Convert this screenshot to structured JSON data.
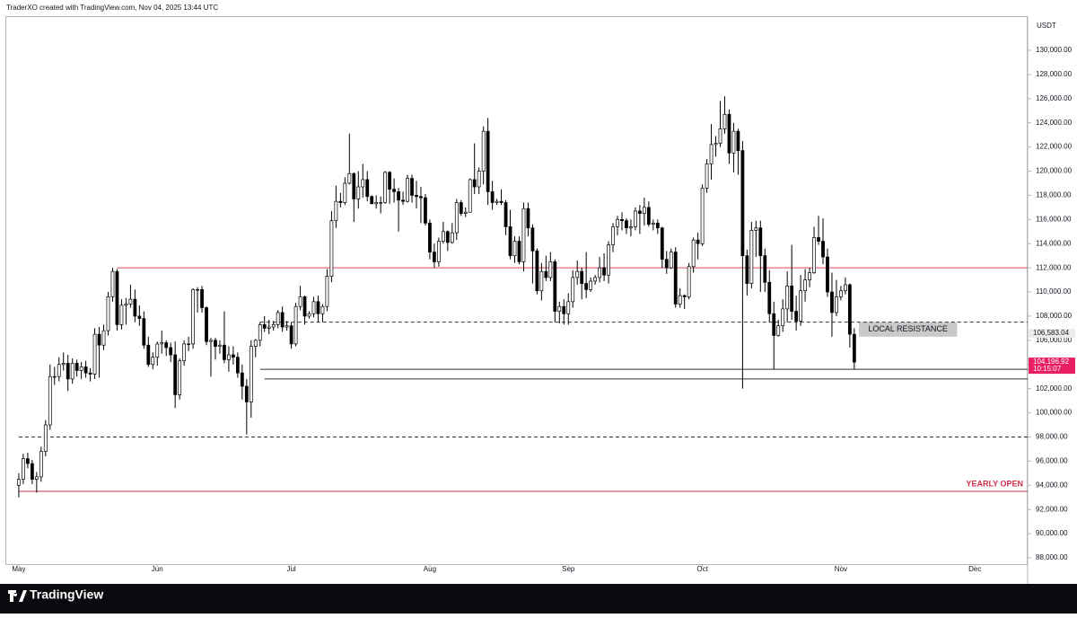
{
  "header": "TraderXO created with TradingView.com, Nov 04, 2025 13:44 UTC",
  "brand": "TradingView",
  "chart_data": {
    "type": "candlestick",
    "currency": "USDT",
    "xlim": [
      -2.8,
      225.8
    ],
    "xticks": [
      {
        "value": 0,
        "label": "May"
      },
      {
        "value": 31,
        "label": "Jun"
      },
      {
        "value": 61,
        "label": "Jul"
      },
      {
        "value": 92,
        "label": "Aug"
      },
      {
        "value": 123,
        "label": "Sep"
      },
      {
        "value": 153,
        "label": "Oct"
      },
      {
        "value": 184,
        "label": "Nov"
      },
      {
        "value": 214,
        "label": "Dec"
      }
    ],
    "ylim": [
      87480,
      132825
    ],
    "yticks": [
      {
        "value": 88000,
        "label": "88,000.00"
      },
      {
        "value": 90000,
        "label": "90,000.00"
      },
      {
        "value": 92000,
        "label": "92,000.00"
      },
      {
        "value": 94000,
        "label": "94,000.00"
      },
      {
        "value": 96000,
        "label": "96,000.00"
      },
      {
        "value": 98000,
        "label": "98,000.00"
      },
      {
        "value": 100000,
        "label": "100,000.00"
      },
      {
        "value": 102000,
        "label": "102,000.00"
      },
      {
        "value": 104000,
        "label": "104,000.00"
      },
      {
        "value": 106000,
        "label": "106,000.00"
      },
      {
        "value": 108000,
        "label": "108,000.00"
      },
      {
        "value": 110000,
        "label": "110,000.00"
      },
      {
        "value": 112000,
        "label": "112,000.00"
      },
      {
        "value": 114000,
        "label": "114,000.00"
      },
      {
        "value": 116000,
        "label": "116,000.00"
      },
      {
        "value": 118000,
        "label": "118,000.00"
      },
      {
        "value": 120000,
        "label": "120,000.00"
      },
      {
        "value": 122000,
        "label": "122,000.00"
      },
      {
        "value": 124000,
        "label": "124,000.00"
      },
      {
        "value": 126000,
        "label": "126,000.00"
      },
      {
        "value": 128000,
        "label": "128,000.00"
      },
      {
        "value": 130000,
        "label": "130,000.00"
      }
    ],
    "up_color": "#ffffff",
    "down_color": "#000000",
    "wick_color": "#000000",
    "candles": [
      [
        94000,
        95000,
        93000,
        94500
      ],
      [
        94500,
        96600,
        94100,
        96200
      ],
      [
        96200,
        96700,
        95400,
        95800
      ],
      [
        95800,
        96100,
        94100,
        94500
      ],
      [
        94500,
        95100,
        93400,
        94700
      ],
      [
        94700,
        97200,
        94300,
        96800
      ],
      [
        96800,
        99400,
        96400,
        99000
      ],
      [
        99000,
        104000,
        98600,
        103000
      ],
      [
        103000,
        103800,
        102300,
        103000
      ],
      [
        103000,
        104600,
        102600,
        104000
      ],
      [
        104000,
        105000,
        103500,
        104100
      ],
      [
        104100,
        104800,
        101800,
        102800
      ],
      [
        102800,
        104500,
        102400,
        104100
      ],
      [
        104100,
        104400,
        103000,
        103500
      ],
      [
        103500,
        104200,
        102800,
        103800
      ],
      [
        103800,
        104300,
        102900,
        103300
      ],
      [
        103300,
        103700,
        102600,
        103200
      ],
      [
        103200,
        107000,
        102800,
        106500
      ],
      [
        106500,
        107100,
        102900,
        105600
      ],
      [
        105600,
        107300,
        105200,
        106800
      ],
      [
        106800,
        110000,
        106400,
        109600
      ],
      [
        109600,
        112000,
        109200,
        111700
      ],
      [
        111700,
        111900,
        106800,
        107300
      ],
      [
        107300,
        109400,
        106900,
        108900
      ],
      [
        108900,
        109500,
        107300,
        109000
      ],
      [
        109000,
        110600,
        108700,
        109400
      ],
      [
        109400,
        110200,
        107500,
        108000
      ],
      [
        108000,
        108900,
        107200,
        107800
      ],
      [
        107800,
        108400,
        105300,
        105600
      ],
      [
        105600,
        106300,
        103800,
        104000
      ],
      [
        104000,
        105000,
        103600,
        104600
      ],
      [
        104600,
        105900,
        103900,
        105700
      ],
      [
        105700,
        106800,
        104900,
        105800
      ],
      [
        105800,
        106000,
        104700,
        105400
      ],
      [
        105400,
        105800,
        104200,
        104800
      ],
      [
        104800,
        105900,
        100400,
        101500
      ],
      [
        101500,
        104500,
        101100,
        104300
      ],
      [
        104300,
        106000,
        103900,
        105700
      ],
      [
        105700,
        106300,
        105100,
        105700
      ],
      [
        105700,
        110300,
        105300,
        110200
      ],
      [
        110200,
        110400,
        108300,
        110200
      ],
      [
        110200,
        110500,
        108300,
        108700
      ],
      [
        108700,
        108800,
        105600,
        105900
      ],
      [
        105900,
        106200,
        103000,
        106000
      ],
      [
        106000,
        106200,
        104400,
        105500
      ],
      [
        105500,
        106000,
        104900,
        105600
      ],
      [
        105600,
        108400,
        104100,
        104400
      ],
      [
        104400,
        105500,
        103400,
        104800
      ],
      [
        104800,
        105500,
        104000,
        104600
      ],
      [
        104600,
        105000,
        102900,
        103300
      ],
      [
        103300,
        104000,
        101100,
        102200
      ],
      [
        102200,
        102800,
        98200,
        100900
      ],
      [
        100900,
        106000,
        99600,
        105500
      ],
      [
        105500,
        106100,
        104600,
        106000
      ],
      [
        106000,
        107500,
        105500,
        107300
      ],
      [
        107300,
        108000,
        106700,
        107000
      ],
      [
        107000,
        107700,
        106500,
        107100
      ],
      [
        107100,
        107600,
        106800,
        107300
      ],
      [
        107300,
        108500,
        107000,
        108300
      ],
      [
        108300,
        108800,
        106700,
        107100
      ],
      [
        107100,
        107600,
        106800,
        107200
      ],
      [
        107200,
        107500,
        105300,
        105700
      ],
      [
        105700,
        109100,
        105500,
        108800
      ],
      [
        108800,
        110500,
        108500,
        109600
      ],
      [
        109600,
        109700,
        107300,
        108000
      ],
      [
        108000,
        108400,
        107800,
        108200
      ],
      [
        108200,
        109600,
        107900,
        109200
      ],
      [
        109200,
        109700,
        107500,
        108200
      ],
      [
        108200,
        109000,
        107500,
        108800
      ],
      [
        108800,
        111900,
        108400,
        111300
      ],
      [
        111300,
        116700,
        110800,
        115900
      ],
      [
        115900,
        118800,
        115300,
        117500
      ],
      [
        117500,
        118200,
        117000,
        117400
      ],
      [
        117400,
        119500,
        117200,
        119000
      ],
      [
        119000,
        123100,
        118900,
        119800
      ],
      [
        119800,
        119900,
        115800,
        117700
      ],
      [
        117700,
        120000,
        116900,
        118700
      ],
      [
        118700,
        120600,
        117800,
        119300
      ],
      [
        119300,
        120000,
        117500,
        117900
      ],
      [
        117900,
        118000,
        117300,
        117300
      ],
      [
        117300,
        118000,
        116900,
        117400
      ],
      [
        117400,
        117900,
        116500,
        117400
      ],
      [
        117400,
        120000,
        117300,
        119900
      ],
      [
        119900,
        120000,
        117300,
        118500
      ],
      [
        118500,
        119400,
        117400,
        118300
      ],
      [
        118300,
        118600,
        115000,
        117600
      ],
      [
        117600,
        118300,
        117200,
        117500
      ],
      [
        117500,
        119700,
        117400,
        119400
      ],
      [
        119400,
        119700,
        117400,
        118000
      ],
      [
        118000,
        119200,
        116900,
        117900
      ],
      [
        117900,
        118700,
        115700,
        117800
      ],
      [
        117800,
        118100,
        115500,
        115700
      ],
      [
        115700,
        116000,
        112700,
        113300
      ],
      [
        113300,
        114000,
        112000,
        112500
      ],
      [
        112500,
        114500,
        112100,
        114200
      ],
      [
        114200,
        115800,
        114000,
        115000
      ],
      [
        115000,
        115100,
        113400,
        114100
      ],
      [
        114100,
        115700,
        114000,
        114900
      ],
      [
        114900,
        117700,
        114300,
        117400
      ],
      [
        117400,
        117600,
        116300,
        116500
      ],
      [
        116500,
        117000,
        116200,
        116600
      ],
      [
        116600,
        119400,
        116600,
        119300
      ],
      [
        119300,
        122300,
        118100,
        118700
      ],
      [
        118700,
        120300,
        118100,
        120000
      ],
      [
        120000,
        123700,
        118900,
        123300
      ],
      [
        123300,
        124400,
        117200,
        118300
      ],
      [
        118300,
        119200,
        116800,
        117400
      ],
      [
        117400,
        117700,
        117200,
        117500
      ],
      [
        117500,
        118500,
        117200,
        117400
      ],
      [
        117400,
        117600,
        114700,
        115400
      ],
      [
        115400,
        116800,
        112700,
        113000
      ],
      [
        113000,
        114600,
        112400,
        114200
      ],
      [
        114200,
        114600,
        112300,
        112500
      ],
      [
        112500,
        117400,
        111700,
        116900
      ],
      [
        116900,
        117400,
        114600,
        115300
      ],
      [
        115300,
        115600,
        110700,
        113400
      ],
      [
        113400,
        113600,
        109800,
        110100
      ],
      [
        110100,
        112400,
        109300,
        111700
      ],
      [
        111700,
        113000,
        110900,
        111200
      ],
      [
        111200,
        113300,
        110900,
        112500
      ],
      [
        112500,
        112700,
        107500,
        108400
      ],
      [
        108400,
        109200,
        107400,
        108800
      ],
      [
        108800,
        109400,
        107300,
        108200
      ],
      [
        108200,
        109900,
        107300,
        109200
      ],
      [
        109200,
        111800,
        108700,
        111200
      ],
      [
        111200,
        112600,
        110600,
        111700
      ],
      [
        111700,
        112000,
        109400,
        110700
      ],
      [
        110700,
        113300,
        109500,
        110200
      ],
      [
        110200,
        111200,
        110000,
        110900
      ],
      [
        110900,
        111400,
        110600,
        111200
      ],
      [
        111200,
        112900,
        110800,
        112000
      ],
      [
        112000,
        113200,
        110900,
        111400
      ],
      [
        111400,
        114200,
        110700,
        113900
      ],
      [
        113900,
        115700,
        113300,
        115400
      ],
      [
        115400,
        116300,
        114700,
        116000
      ],
      [
        116000,
        116600,
        115100,
        115900
      ],
      [
        115900,
        116100,
        114800,
        115300
      ],
      [
        115300,
        116000,
        114600,
        115400
      ],
      [
        115400,
        117000,
        115100,
        116700
      ],
      [
        116700,
        117200,
        114800,
        116500
      ],
      [
        116500,
        117800,
        115500,
        117000
      ],
      [
        117000,
        117500,
        115400,
        115600
      ],
      [
        115600,
        116000,
        115100,
        115700
      ],
      [
        115700,
        116000,
        114800,
        115300
      ],
      [
        115300,
        115400,
        112000,
        112700
      ],
      [
        112700,
        113400,
        111500,
        112000
      ],
      [
        112000,
        113600,
        111900,
        113300
      ],
      [
        113300,
        113700,
        108700,
        109000
      ],
      [
        109000,
        110300,
        108700,
        109700
      ],
      [
        109700,
        109800,
        108600,
        109600
      ],
      [
        109600,
        112400,
        109400,
        112100
      ],
      [
        112100,
        114500,
        111600,
        114300
      ],
      [
        114300,
        114900,
        112700,
        114000
      ],
      [
        114000,
        118900,
        113800,
        118600
      ],
      [
        118600,
        121000,
        118200,
        120600
      ],
      [
        120600,
        123900,
        119300,
        122200
      ],
      [
        122200,
        122900,
        121200,
        122300
      ],
      [
        122300,
        125800,
        122000,
        123500
      ],
      [
        123500,
        126200,
        123100,
        124700
      ],
      [
        124700,
        125100,
        120600,
        121500
      ],
      [
        121500,
        124000,
        119900,
        123300
      ],
      [
        123300,
        123500,
        119700,
        121700
      ],
      [
        121700,
        122500,
        102000,
        113000
      ],
      [
        113000,
        113500,
        109700,
        110700
      ],
      [
        110700,
        115800,
        110300,
        115100
      ],
      [
        115100,
        115900,
        112900,
        115300
      ],
      [
        115300,
        115900,
        110000,
        113000
      ],
      [
        113000,
        113600,
        110000,
        110800
      ],
      [
        110800,
        111800,
        107500,
        108200
      ],
      [
        108200,
        109200,
        103600,
        106400
      ],
      [
        106400,
        107700,
        106300,
        107200
      ],
      [
        107200,
        109400,
        106700,
        108600
      ],
      [
        108600,
        111700,
        107500,
        110500
      ],
      [
        110500,
        113900,
        107700,
        108400
      ],
      [
        108400,
        109700,
        106800,
        107600
      ],
      [
        107600,
        111400,
        107200,
        110100
      ],
      [
        110100,
        111900,
        109200,
        111000
      ],
      [
        111000,
        112000,
        110400,
        111600
      ],
      [
        111600,
        115400,
        111500,
        114500
      ],
      [
        114500,
        116300,
        113900,
        114200
      ],
      [
        114200,
        116100,
        112300,
        112900
      ],
      [
        112900,
        113600,
        109600,
        110000
      ],
      [
        110000,
        111600,
        106300,
        108300
      ],
      [
        108300,
        111000,
        108000,
        109600
      ],
      [
        109600,
        110500,
        109300,
        110100
      ],
      [
        110100,
        111200,
        109800,
        110600
      ],
      [
        110600,
        110700,
        105400,
        106500
      ],
      [
        106500,
        107000,
        103600,
        104196.92
      ]
    ],
    "levels": [
      {
        "value": 112000,
        "from": 22,
        "color": "#e0475a",
        "style": "solid"
      },
      {
        "value": 107500,
        "from": 54,
        "color": "#333333",
        "style": "dashed"
      },
      {
        "value": 103600,
        "from": 54,
        "color": "#333333",
        "style": "solid"
      },
      {
        "value": 102800,
        "from": 55,
        "color": "#333333",
        "style": "solid"
      },
      {
        "value": 98000,
        "from": 0,
        "color": "#333333",
        "style": "dashed"
      },
      {
        "value": 93500,
        "from": 0,
        "color": "#d0304a",
        "style": "solid",
        "label": "YEARLY OPEN"
      }
    ],
    "zones": [
      {
        "label": "LOCAL RESISTANCE",
        "from": 188,
        "to": 210,
        "range": [
          106300,
          107500
        ],
        "color": "#c9c9c9"
      }
    ],
    "price_labels": [
      {
        "value": 106583.04,
        "label": "106,583.04",
        "color": "#ececec",
        "text_color": "#131722"
      },
      {
        "value": 104196.92,
        "label": "104,196.92",
        "sublabel": "10:15:07",
        "color": "#e91e63",
        "text_color": "#ffffff"
      }
    ]
  }
}
